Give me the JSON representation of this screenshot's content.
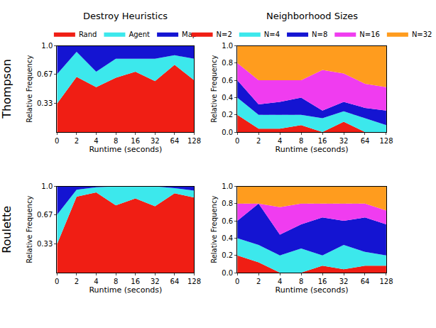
{
  "chart_data": [
    {
      "type": "area",
      "stacked": true,
      "title": "Destroy Heuristics",
      "annotations": [
        "Thompson"
      ],
      "x_label": "Runtime (seconds)",
      "y_label": "Relative Frequency",
      "categories": [
        "0",
        "2",
        "4",
        "8",
        "16",
        "32",
        "64",
        "128"
      ],
      "series": [
        {
          "name": "Rand",
          "color": "#f01e14",
          "values": [
            0.33,
            0.64,
            0.52,
            0.63,
            0.7,
            0.59,
            0.78,
            0.6
          ]
        },
        {
          "name": "Agent",
          "color": "#3ce8ec",
          "values": [
            0.34,
            0.29,
            0.18,
            0.22,
            0.15,
            0.26,
            0.11,
            0.25
          ]
        },
        {
          "name": "Map",
          "color": "#1414d2",
          "values": [
            0.33,
            0.07,
            0.3,
            0.15,
            0.15,
            0.15,
            0.11,
            0.15
          ]
        }
      ],
      "ylim": [
        0,
        1
      ],
      "yticks": [
        0.33,
        0.67,
        {
          "value": 1,
          "label": "1.0"
        }
      ],
      "grid": true,
      "legend": "top"
    },
    {
      "type": "area",
      "stacked": true,
      "title": "Neighborhood Sizes",
      "x_label": "Runtime (seconds)",
      "y_label": "Relative Frequency",
      "categories": [
        "0",
        "2",
        "4",
        "8",
        "16",
        "32",
        "64",
        "128"
      ],
      "series": [
        {
          "name": "N=2",
          "color": "#f01e14",
          "values": [
            0.2,
            0.04,
            0.04,
            0.08,
            0.0,
            0.12,
            0.0,
            0.0
          ]
        },
        {
          "name": "N=4",
          "color": "#3ce8ec",
          "values": [
            0.2,
            0.16,
            0.16,
            0.12,
            0.16,
            0.12,
            0.16,
            0.08
          ]
        },
        {
          "name": "N=8",
          "color": "#1414d2",
          "values": [
            0.2,
            0.12,
            0.15,
            0.2,
            0.09,
            0.11,
            0.12,
            0.17
          ]
        },
        {
          "name": "N=16",
          "color": "#f03cf0",
          "values": [
            0.2,
            0.28,
            0.25,
            0.2,
            0.47,
            0.33,
            0.28,
            0.27
          ]
        },
        {
          "name": "N=32",
          "color": "#ff9c1e",
          "values": [
            0.2,
            0.4,
            0.4,
            0.4,
            0.28,
            0.32,
            0.44,
            0.48
          ]
        }
      ],
      "ylim": [
        0,
        1
      ],
      "yticks": [
        {
          "value": 0,
          "label": "0.0"
        },
        0.2,
        0.4,
        0.6,
        0.8,
        {
          "value": 1,
          "label": "1.0"
        }
      ],
      "grid": true,
      "legend": "top"
    },
    {
      "type": "area",
      "stacked": true,
      "annotations": [
        "Roulette"
      ],
      "x_label": "Runtime (seconds)",
      "y_label": "Relative Frequency",
      "categories": [
        "0",
        "2",
        "4",
        "8",
        "16",
        "32",
        "64",
        "128"
      ],
      "series": [
        {
          "name": "Rand",
          "color": "#f01e14",
          "values": [
            0.33,
            0.88,
            0.93,
            0.78,
            0.86,
            0.77,
            0.92,
            0.87
          ]
        },
        {
          "name": "Agent",
          "color": "#3ce8ec",
          "values": [
            0.34,
            0.08,
            0.06,
            0.22,
            0.14,
            0.23,
            0.06,
            0.08
          ]
        },
        {
          "name": "Map",
          "color": "#1414d2",
          "values": [
            0.33,
            0.04,
            0.01,
            0.0,
            0.0,
            0.0,
            0.02,
            0.05
          ]
        }
      ],
      "ylim": [
        0,
        1
      ],
      "yticks": [
        0.33,
        0.67,
        {
          "value": 1,
          "label": "1.0"
        }
      ],
      "grid": true
    },
    {
      "type": "area",
      "stacked": true,
      "x_label": "Runtime (seconds)",
      "y_label": "Relative Frequency",
      "categories": [
        "0",
        "2",
        "4",
        "8",
        "16",
        "32",
        "64",
        "128"
      ],
      "series": [
        {
          "name": "N=2",
          "color": "#f01e14",
          "values": [
            0.2,
            0.12,
            0.0,
            0.0,
            0.08,
            0.04,
            0.08,
            0.08
          ]
        },
        {
          "name": "N=4",
          "color": "#3ce8ec",
          "values": [
            0.2,
            0.2,
            0.2,
            0.28,
            0.12,
            0.28,
            0.16,
            0.12
          ]
        },
        {
          "name": "N=8",
          "color": "#1414d2",
          "values": [
            0.2,
            0.48,
            0.24,
            0.28,
            0.44,
            0.28,
            0.4,
            0.36
          ]
        },
        {
          "name": "N=16",
          "color": "#f03cf0",
          "values": [
            0.2,
            0.0,
            0.32,
            0.24,
            0.16,
            0.2,
            0.16,
            0.16
          ]
        },
        {
          "name": "N=32",
          "color": "#ff9c1e",
          "values": [
            0.2,
            0.2,
            0.24,
            0.2,
            0.2,
            0.2,
            0.2,
            0.28
          ]
        }
      ],
      "ylim": [
        0,
        1
      ],
      "yticks": [
        {
          "value": 0,
          "label": "0.0"
        },
        0.2,
        0.4,
        0.6,
        0.8,
        {
          "value": 1,
          "label": "1.0"
        }
      ],
      "grid": true
    }
  ]
}
